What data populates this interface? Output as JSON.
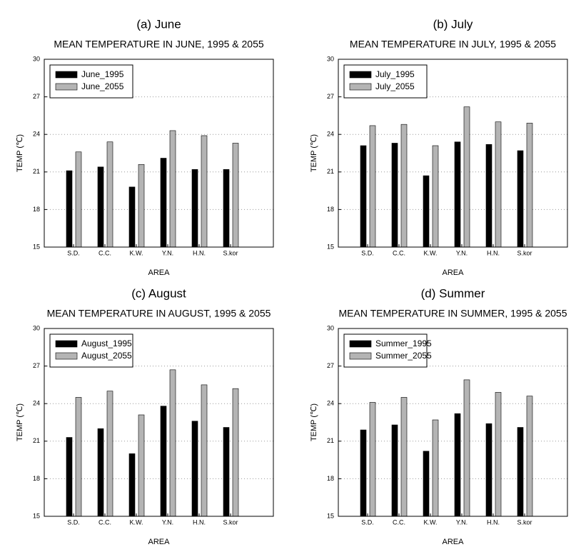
{
  "chart_data": [
    {
      "type": "bar",
      "caption": "(a)  June",
      "title": "MEAN TEMPERATURE IN JUNE, 1995 & 2055",
      "xlabel": "AREA",
      "ylabel": "TEMP (℃)",
      "categories": [
        "S.D.",
        "C.C.",
        "K.W.",
        "Y.N.",
        "H.N.",
        "S.kor"
      ],
      "series": [
        {
          "name": "June_1995",
          "color": "#000000",
          "values": [
            21.1,
            21.4,
            19.8,
            22.1,
            21.2,
            21.2
          ]
        },
        {
          "name": "June_2055",
          "color": "#b4b4b4",
          "values": [
            22.6,
            23.4,
            21.6,
            24.3,
            23.9,
            23.3
          ]
        }
      ],
      "ylim": [
        15,
        30
      ],
      "yticks": [
        15,
        18,
        21,
        24,
        27,
        30
      ],
      "grid": true,
      "legend": "upper left"
    },
    {
      "type": "bar",
      "caption": "(b)  July",
      "title": "MEAN TEMPERATURE IN JULY, 1995 & 2055",
      "xlabel": "AREA",
      "ylabel": "TEMP (℃)",
      "categories": [
        "S.D.",
        "C.C.",
        "K.W.",
        "Y.N.",
        "H.N.",
        "S.kor"
      ],
      "series": [
        {
          "name": "July_1995",
          "color": "#000000",
          "values": [
            23.1,
            23.3,
            20.7,
            23.4,
            23.2,
            22.7
          ]
        },
        {
          "name": "July_2055",
          "color": "#b4b4b4",
          "values": [
            24.7,
            24.8,
            23.1,
            26.2,
            25.0,
            24.9
          ]
        }
      ],
      "ylim": [
        15,
        30
      ],
      "yticks": [
        15,
        18,
        21,
        24,
        27,
        30
      ],
      "grid": true,
      "legend": "upper left"
    },
    {
      "type": "bar",
      "caption": "(c)  August",
      "title": "MEAN TEMPERATURE IN AUGUST, 1995 & 2055",
      "xlabel": "AREA",
      "ylabel": "TEMP (℃)",
      "categories": [
        "S.D.",
        "C.C.",
        "K.W.",
        "Y.N.",
        "H.N.",
        "S.kor"
      ],
      "series": [
        {
          "name": "August_1995",
          "color": "#000000",
          "values": [
            21.3,
            22.0,
            20.0,
            23.8,
            22.6,
            22.1
          ]
        },
        {
          "name": "August_2055",
          "color": "#b4b4b4",
          "values": [
            24.5,
            25.0,
            23.1,
            26.7,
            25.5,
            25.2
          ]
        }
      ],
      "ylim": [
        15,
        30
      ],
      "yticks": [
        15,
        18,
        21,
        24,
        27,
        30
      ],
      "grid": true,
      "legend": "upper left"
    },
    {
      "type": "bar",
      "caption": "(d)  Summer",
      "title": "MEAN TEMPERATURE IN SUMMER, 1995 & 2055",
      "xlabel": "AREA",
      "ylabel": "TEMP (℃)",
      "categories": [
        "S.D.",
        "C.C.",
        "K.W.",
        "Y.N.",
        "H.N.",
        "S.kor"
      ],
      "series": [
        {
          "name": "Summer_1995",
          "color": "#000000",
          "values": [
            21.9,
            22.3,
            20.2,
            23.2,
            22.4,
            22.1
          ]
        },
        {
          "name": "Summer_2055",
          "color": "#b4b4b4",
          "values": [
            24.1,
            24.5,
            22.7,
            25.9,
            24.9,
            24.6
          ]
        }
      ],
      "ylim": [
        15,
        30
      ],
      "yticks": [
        15,
        18,
        21,
        24,
        27,
        30
      ],
      "grid": true,
      "legend": "upper left"
    }
  ]
}
